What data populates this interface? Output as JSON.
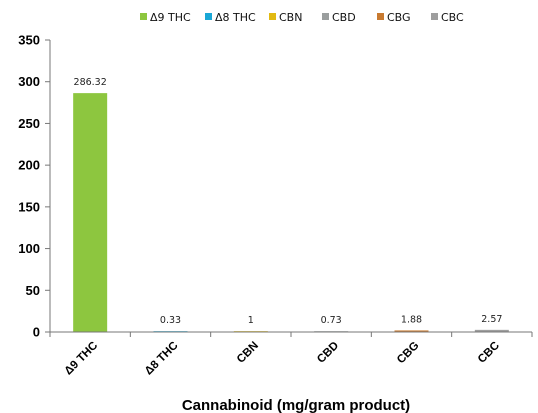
{
  "chart_data": {
    "type": "bar",
    "title": "",
    "xlabel": "Cannabinoid (mg/gram product)",
    "ylabel": "",
    "ylim": [
      0,
      350
    ],
    "yticks": [
      0,
      50,
      100,
      150,
      200,
      250,
      300,
      350
    ],
    "categories": [
      "Δ9 THC",
      "Δ8 THC",
      "CBN",
      "CBD",
      "CBG",
      "CBC"
    ],
    "values": [
      286.32,
      0.33,
      1,
      0.73,
      1.88,
      2.57
    ],
    "value_labels": [
      "286.32",
      "0.33",
      "1",
      "0.73",
      "1.88",
      "2.57"
    ],
    "colors": [
      "#8DC63F",
      "#1AA7D6",
      "#E2BA12",
      "#9A9E9E",
      "#C87A30",
      "#9E9E9E"
    ],
    "legend_position": "top",
    "grid": false
  }
}
